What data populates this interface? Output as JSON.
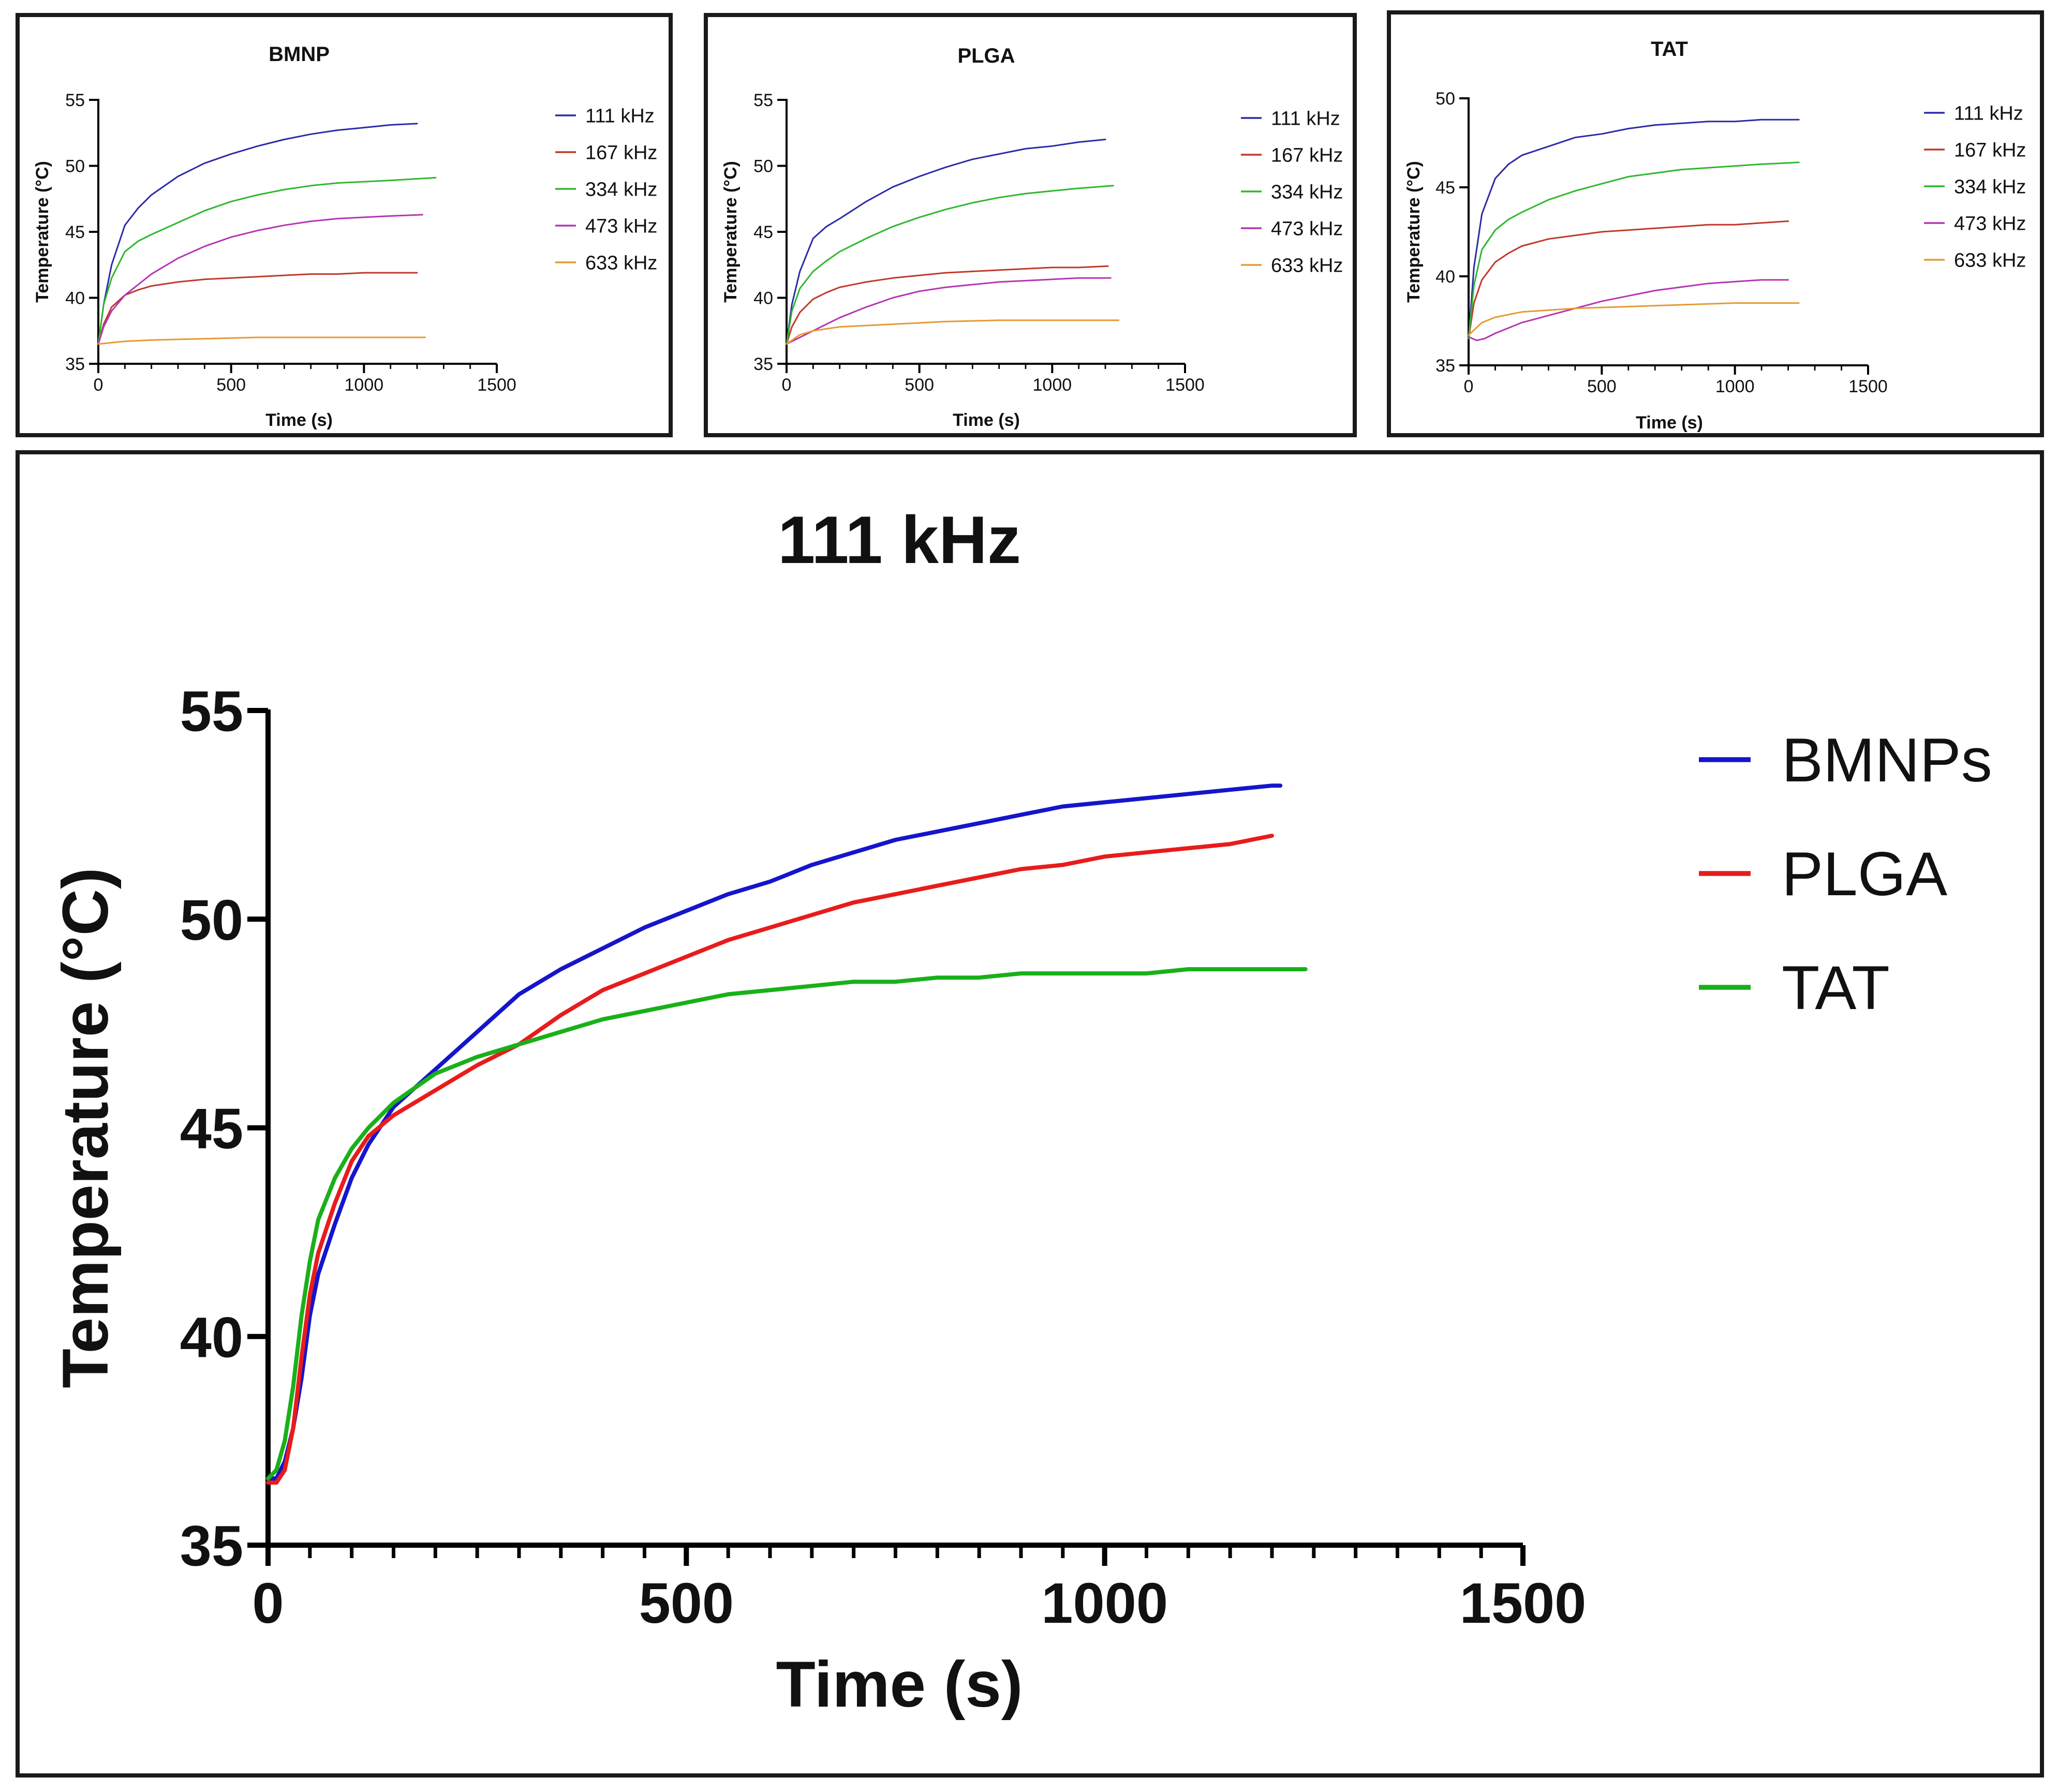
{
  "chart_data": [
    {
      "id": "bmnp",
      "type": "line",
      "title": "BMNP",
      "xlabel": "Time (s)",
      "ylabel": "Temperature (°C)",
      "xlim": [
        0,
        1500
      ],
      "ylim": [
        35,
        55
      ],
      "xticks": [
        0,
        500,
        1000,
        1500
      ],
      "yticks": [
        35,
        40,
        45,
        50,
        55
      ],
      "legend_position": "right",
      "series": [
        {
          "name": "111 kHz",
          "color": "#2b2ba8",
          "x": [
            0,
            20,
            50,
            100,
            150,
            200,
            300,
            400,
            500,
            600,
            700,
            800,
            900,
            1000,
            1100,
            1200
          ],
          "y": [
            36.5,
            39.5,
            42.5,
            45.5,
            46.8,
            47.8,
            49.2,
            50.2,
            50.9,
            51.5,
            52.0,
            52.4,
            52.7,
            52.9,
            53.1,
            53.2
          ]
        },
        {
          "name": "167 kHz",
          "color": "#c0392b",
          "x": [
            0,
            20,
            50,
            100,
            150,
            200,
            300,
            400,
            500,
            600,
            700,
            800,
            900,
            1000,
            1100,
            1200
          ],
          "y": [
            36.5,
            38.0,
            39.3,
            40.2,
            40.6,
            40.9,
            41.2,
            41.4,
            41.5,
            41.6,
            41.7,
            41.8,
            41.8,
            41.9,
            41.9,
            41.9
          ]
        },
        {
          "name": "334 kHz",
          "color": "#2eb82e",
          "x": [
            0,
            20,
            50,
            100,
            150,
            200,
            300,
            400,
            500,
            600,
            700,
            800,
            900,
            1000,
            1100,
            1270
          ],
          "y": [
            36.5,
            39.5,
            41.5,
            43.5,
            44.3,
            44.8,
            45.7,
            46.6,
            47.3,
            47.8,
            48.2,
            48.5,
            48.7,
            48.8,
            48.9,
            49.1
          ]
        },
        {
          "name": "473 kHz",
          "color": "#b535b5",
          "x": [
            0,
            20,
            50,
            100,
            150,
            200,
            300,
            400,
            500,
            600,
            700,
            800,
            900,
            1000,
            1100,
            1220
          ],
          "y": [
            36.5,
            37.8,
            39.0,
            40.2,
            41.0,
            41.8,
            43.0,
            43.9,
            44.6,
            45.1,
            45.5,
            45.8,
            46.0,
            46.1,
            46.2,
            46.3
          ]
        },
        {
          "name": "633 kHz",
          "color": "#e69a33",
          "x": [
            0,
            100,
            200,
            400,
            600,
            800,
            1000,
            1230
          ],
          "y": [
            36.5,
            36.7,
            36.8,
            36.9,
            37.0,
            37.0,
            37.0,
            37.0
          ]
        }
      ]
    },
    {
      "id": "plga",
      "type": "line",
      "title": "PLGA",
      "xlabel": "Time (s)",
      "ylabel": "Temperature (°C)",
      "xlim": [
        0,
        1500
      ],
      "ylim": [
        35,
        55
      ],
      "xticks": [
        0,
        500,
        1000,
        1500
      ],
      "yticks": [
        35,
        40,
        45,
        50,
        55
      ],
      "legend_position": "right",
      "series": [
        {
          "name": "111 kHz",
          "color": "#2b2ba8",
          "x": [
            0,
            20,
            50,
            100,
            150,
            200,
            300,
            400,
            500,
            600,
            700,
            800,
            900,
            1000,
            1100,
            1200
          ],
          "y": [
            36.5,
            39.5,
            42.0,
            44.5,
            45.4,
            46.0,
            47.3,
            48.4,
            49.2,
            49.9,
            50.5,
            50.9,
            51.3,
            51.5,
            51.8,
            52.0
          ]
        },
        {
          "name": "167 kHz",
          "color": "#c0392b",
          "x": [
            0,
            20,
            50,
            100,
            150,
            200,
            300,
            400,
            500,
            600,
            700,
            800,
            900,
            1000,
            1100,
            1210
          ],
          "y": [
            36.5,
            37.8,
            38.9,
            39.9,
            40.4,
            40.8,
            41.2,
            41.5,
            41.7,
            41.9,
            42.0,
            42.1,
            42.2,
            42.3,
            42.3,
            42.4
          ]
        },
        {
          "name": "334 kHz",
          "color": "#2eb82e",
          "x": [
            0,
            20,
            50,
            100,
            150,
            200,
            300,
            400,
            500,
            600,
            700,
            800,
            900,
            1000,
            1100,
            1230
          ],
          "y": [
            36.5,
            39.0,
            40.7,
            42.0,
            42.8,
            43.5,
            44.5,
            45.4,
            46.1,
            46.7,
            47.2,
            47.6,
            47.9,
            48.1,
            48.3,
            48.5
          ]
        },
        {
          "name": "473 kHz",
          "color": "#b535b5",
          "x": [
            0,
            50,
            100,
            150,
            200,
            300,
            400,
            500,
            600,
            700,
            800,
            900,
            1000,
            1100,
            1220
          ],
          "y": [
            36.5,
            37.0,
            37.5,
            38.0,
            38.5,
            39.3,
            40.0,
            40.5,
            40.8,
            41.0,
            41.2,
            41.3,
            41.4,
            41.5,
            41.5
          ]
        },
        {
          "name": "633 kHz",
          "color": "#e69a33",
          "x": [
            0,
            50,
            100,
            200,
            400,
            600,
            800,
            1000,
            1250
          ],
          "y": [
            36.5,
            37.2,
            37.5,
            37.8,
            38.0,
            38.2,
            38.3,
            38.3,
            38.3
          ]
        }
      ]
    },
    {
      "id": "tat",
      "type": "line",
      "title": "TAT",
      "xlabel": "Time (s)",
      "ylabel": "Temperature (°C)",
      "xlim": [
        0,
        1500
      ],
      "ylim": [
        35,
        50
      ],
      "xticks": [
        0,
        500,
        1000,
        1500
      ],
      "yticks": [
        35,
        40,
        45,
        50
      ],
      "legend_position": "right",
      "series": [
        {
          "name": "111 kHz",
          "color": "#2b2ba8",
          "x": [
            0,
            20,
            50,
            100,
            150,
            200,
            300,
            400,
            500,
            600,
            700,
            800,
            900,
            1000,
            1100,
            1240
          ],
          "y": [
            36.5,
            40.5,
            43.5,
            45.5,
            46.3,
            46.8,
            47.3,
            47.8,
            48.0,
            48.3,
            48.5,
            48.6,
            48.7,
            48.7,
            48.8,
            48.8
          ]
        },
        {
          "name": "167 kHz",
          "color": "#c0392b",
          "x": [
            0,
            20,
            50,
            100,
            150,
            200,
            300,
            400,
            500,
            600,
            700,
            800,
            900,
            1000,
            1100,
            1200
          ],
          "y": [
            36.5,
            38.5,
            39.8,
            40.8,
            41.3,
            41.7,
            42.1,
            42.3,
            42.5,
            42.6,
            42.7,
            42.8,
            42.9,
            42.9,
            43.0,
            43.1
          ]
        },
        {
          "name": "334 kHz",
          "color": "#2eb82e",
          "x": [
            0,
            20,
            50,
            100,
            150,
            200,
            300,
            400,
            500,
            600,
            700,
            800,
            900,
            1000,
            1100,
            1240
          ],
          "y": [
            36.5,
            39.5,
            41.5,
            42.6,
            43.2,
            43.6,
            44.3,
            44.8,
            45.2,
            45.6,
            45.8,
            46.0,
            46.1,
            46.2,
            46.3,
            46.4
          ]
        },
        {
          "name": "473 kHz",
          "color": "#b535b5",
          "x": [
            0,
            30,
            60,
            100,
            150,
            200,
            300,
            400,
            500,
            600,
            700,
            800,
            900,
            1000,
            1100,
            1200
          ],
          "y": [
            36.6,
            36.4,
            36.5,
            36.8,
            37.1,
            37.4,
            37.8,
            38.2,
            38.6,
            38.9,
            39.2,
            39.4,
            39.6,
            39.7,
            39.8,
            39.8
          ]
        },
        {
          "name": "633 kHz",
          "color": "#e69a33",
          "x": [
            0,
            50,
            100,
            200,
            300,
            400,
            600,
            800,
            1000,
            1240
          ],
          "y": [
            36.7,
            37.4,
            37.7,
            38.0,
            38.1,
            38.2,
            38.3,
            38.4,
            38.5,
            38.5
          ]
        }
      ]
    },
    {
      "id": "main",
      "type": "line",
      "title": "111 kHz",
      "xlabel": "Time (s)",
      "ylabel": "Temperature (°C)",
      "xlim": [
        0,
        1500
      ],
      "ylim": [
        35,
        55
      ],
      "xticks": [
        0,
        500,
        1000,
        1500
      ],
      "yticks": [
        35,
        40,
        45,
        50,
        55
      ],
      "legend_position": "right",
      "series": [
        {
          "name": "BMNPs",
          "color": "#1515cc",
          "x": [
            0,
            10,
            20,
            30,
            40,
            50,
            60,
            80,
            100,
            120,
            150,
            200,
            250,
            300,
            350,
            400,
            450,
            500,
            550,
            600,
            650,
            700,
            750,
            800,
            850,
            900,
            950,
            1000,
            1050,
            1100,
            1150,
            1200,
            1210
          ],
          "y": [
            36.6,
            36.6,
            37.0,
            37.8,
            39.0,
            40.5,
            41.5,
            42.7,
            43.8,
            44.6,
            45.5,
            46.4,
            47.3,
            48.2,
            48.8,
            49.3,
            49.8,
            50.2,
            50.6,
            50.9,
            51.3,
            51.6,
            51.9,
            52.1,
            52.3,
            52.5,
            52.7,
            52.8,
            52.9,
            53.0,
            53.1,
            53.2,
            53.2
          ]
        },
        {
          "name": "PLGA",
          "color": "#e81c1c",
          "x": [
            0,
            10,
            20,
            30,
            40,
            50,
            60,
            80,
            100,
            120,
            150,
            200,
            250,
            300,
            350,
            400,
            450,
            500,
            550,
            600,
            650,
            700,
            750,
            800,
            850,
            900,
            950,
            1000,
            1050,
            1100,
            1150,
            1200
          ],
          "y": [
            36.5,
            36.5,
            36.8,
            37.8,
            39.5,
            41.0,
            42.0,
            43.2,
            44.2,
            44.8,
            45.3,
            45.9,
            46.5,
            47.0,
            47.7,
            48.3,
            48.7,
            49.1,
            49.5,
            49.8,
            50.1,
            50.4,
            50.6,
            50.8,
            51.0,
            51.2,
            51.3,
            51.5,
            51.6,
            51.7,
            51.8,
            52.0
          ]
        },
        {
          "name": "TAT",
          "color": "#19b019",
          "x": [
            0,
            10,
            20,
            30,
            40,
            50,
            60,
            80,
            100,
            120,
            150,
            200,
            250,
            300,
            350,
            400,
            450,
            500,
            550,
            600,
            650,
            700,
            750,
            800,
            850,
            900,
            950,
            1000,
            1050,
            1100,
            1150,
            1200,
            1240
          ],
          "y": [
            36.6,
            36.8,
            37.5,
            38.8,
            40.5,
            41.8,
            42.8,
            43.8,
            44.5,
            45.0,
            45.6,
            46.3,
            46.7,
            47.0,
            47.3,
            47.6,
            47.8,
            48.0,
            48.2,
            48.3,
            48.4,
            48.5,
            48.5,
            48.6,
            48.6,
            48.7,
            48.7,
            48.7,
            48.7,
            48.8,
            48.8,
            48.8,
            48.8
          ]
        }
      ]
    }
  ]
}
